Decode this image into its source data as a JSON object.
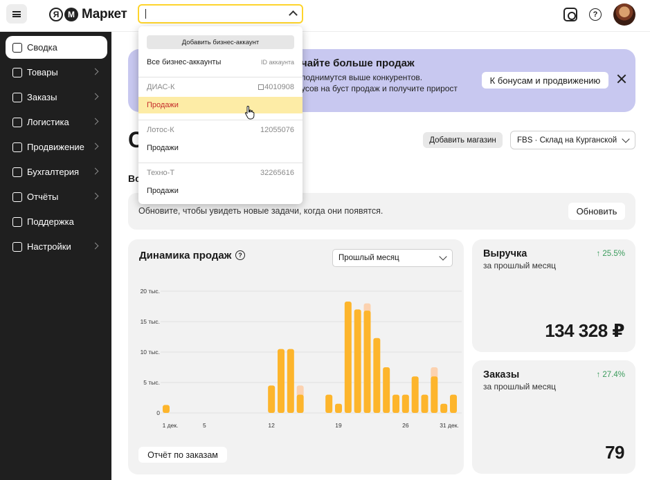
{
  "header": {
    "logo_ya": "Я",
    "logo_m": "М",
    "logo_text": "Маркет"
  },
  "sidebar": {
    "items": [
      {
        "label": "Сводка",
        "active": true,
        "arrow": false
      },
      {
        "label": "Товары",
        "arrow": true
      },
      {
        "label": "Заказы",
        "arrow": true
      },
      {
        "label": "Логистика",
        "arrow": true
      },
      {
        "label": "Продвижение",
        "arrow": true
      },
      {
        "label": "Бухгалтерия",
        "arrow": true
      },
      {
        "label": "Отчёты",
        "arrow": true
      },
      {
        "label": "Поддержка",
        "arrow": false
      },
      {
        "label": "Настройки",
        "arrow": true
      }
    ]
  },
  "promo": {
    "title": "чайте больше продаж",
    "line1": "поднимутся выше конкурентов.",
    "line2": "усов на буст продаж и получите прирост",
    "cta": "К бонусам и продвижению"
  },
  "page": {
    "title_fragment": "С",
    "add_store": "Добавить магазин",
    "store_select": "FBS · Склад на Курганской",
    "section_fragment": "Вс"
  },
  "notice": {
    "text": "Обновите, чтобы увидеть новые задачи, когда они появятся.",
    "button": "Обновить"
  },
  "sales": {
    "title": "Динамика продаж",
    "help": "?",
    "period": "Прошлый месяц",
    "report_button": "Отчёт по заказам"
  },
  "kpis": [
    {
      "title": "Выручка",
      "sub": "за прошлый месяц",
      "delta": "↑ 25.5%",
      "value": "134 328 ₽"
    },
    {
      "title": "Заказы",
      "sub": "за прошлый месяц",
      "delta": "↑ 27.4%",
      "value": "79"
    }
  ],
  "dropdown": {
    "add_button": "Добавить бизнес-аккаунт",
    "all_accounts": "Все бизнес-аккаунты",
    "id_header": "ID аккаунта",
    "accounts": [
      {
        "name": "ДИАС-К",
        "id": "4010908",
        "shop": "Продажи",
        "selected": true
      },
      {
        "name": "Лотос-К",
        "id": "12055076",
        "shop": "Продажи",
        "selected": false
      },
      {
        "name": "Техно-Т",
        "id": "32265616",
        "shop": "Продажи",
        "selected": false
      }
    ]
  },
  "chart_data": {
    "type": "bar",
    "x_ticks": [
      "1 дек.",
      "5",
      "12",
      "19",
      "26",
      "31 дек."
    ],
    "y_ticks": [
      "0",
      "5 тыс.",
      "10 тыс.",
      "15 тыс.",
      "20 тыс."
    ],
    "ylim": [
      0,
      20000
    ],
    "days": [
      1,
      2,
      3,
      4,
      5,
      6,
      7,
      8,
      9,
      10,
      11,
      12,
      13,
      14,
      15,
      16,
      17,
      18,
      19,
      20,
      21,
      22,
      23,
      24,
      25,
      26,
      27,
      28,
      29,
      30,
      31
    ],
    "values": [
      1300,
      0,
      0,
      0,
      0,
      0,
      0,
      0,
      0,
      0,
      0,
      4500,
      10500,
      10500,
      3000,
      0,
      0,
      3000,
      1500,
      18300,
      17000,
      16800,
      12300,
      7500,
      3000,
      3000,
      6000,
      3000,
      6000,
      1500,
      3000
    ],
    "extra": [
      0,
      0,
      0,
      0,
      0,
      0,
      0,
      0,
      0,
      0,
      0,
      0,
      0,
      0,
      1500,
      0,
      0,
      0,
      0,
      0,
      0,
      1200,
      0,
      0,
      0,
      0,
      0,
      0,
      1500,
      0,
      0
    ],
    "colors": {
      "main": "#fdb52c",
      "extra": "#fcd2b0"
    }
  }
}
